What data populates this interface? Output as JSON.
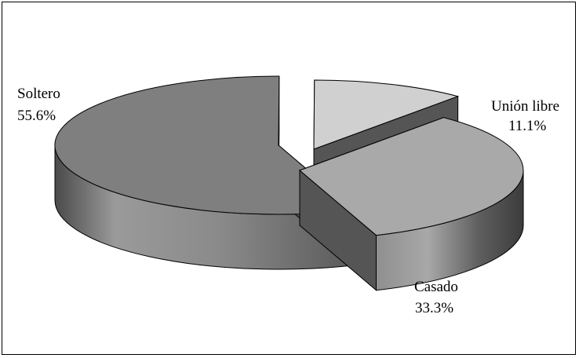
{
  "chart_data": {
    "type": "pie",
    "style": "3d-exploded",
    "title": "",
    "slices": [
      {
        "label": "Soltero",
        "value": 55.6,
        "value_label": "55.6%",
        "color": "#7f7f7f"
      },
      {
        "label": "Unión libre",
        "value": 11.1,
        "value_label": "11.1%",
        "color": "#d0d0d0"
      },
      {
        "label": "Casado",
        "value": 33.3,
        "value_label": "33.3%",
        "color": "#a9a9a9"
      }
    ],
    "legend": "none",
    "border": true
  }
}
